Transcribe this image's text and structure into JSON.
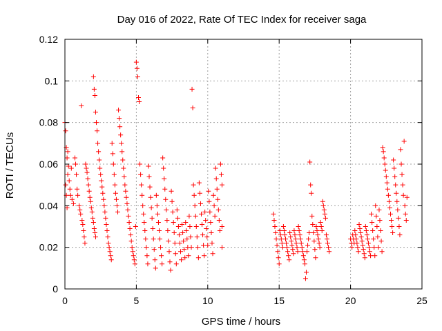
{
  "chart_data": {
    "type": "scatter",
    "title": "Day 016 of 2022, Rate Of TEC Index for receiver saga",
    "xlabel": "GPS time / hours",
    "ylabel": "ROTI / TECUs",
    "xlim": [
      0,
      25
    ],
    "ylim": [
      0,
      0.12
    ],
    "x_ticks": [
      0,
      5,
      10,
      15,
      20,
      25
    ],
    "x_tick_labels": [
      "0",
      "5",
      "10",
      "15",
      "20",
      "25"
    ],
    "y_ticks": [
      0,
      0.02,
      0.04,
      0.06,
      0.08,
      0.1,
      0.12
    ],
    "y_tick_labels": [
      "0",
      "0.02",
      "0.04",
      "0.06",
      "0.08",
      "0.1",
      "0.12"
    ],
    "grid": true,
    "marker": "plus",
    "color": "#ff0000",
    "points": [
      [
        0.0,
        0.08
      ],
      [
        0.05,
        0.076
      ],
      [
        0.1,
        0.068
      ],
      [
        0.15,
        0.063
      ],
      [
        0.2,
        0.066
      ],
      [
        0.25,
        0.059
      ],
      [
        0.05,
        0.05
      ],
      [
        0.1,
        0.045
      ],
      [
        0.15,
        0.039
      ],
      [
        0.2,
        0.055
      ],
      [
        0.3,
        0.052
      ],
      [
        0.35,
        0.048
      ],
      [
        0.4,
        0.045
      ],
      [
        0.45,
        0.058
      ],
      [
        0.5,
        0.043
      ],
      [
        0.6,
        0.041
      ],
      [
        0.7,
        0.063
      ],
      [
        0.75,
        0.06
      ],
      [
        0.8,
        0.055
      ],
      [
        0.85,
        0.048
      ],
      [
        0.9,
        0.045
      ],
      [
        1.0,
        0.04
      ],
      [
        1.05,
        0.038
      ],
      [
        1.1,
        0.036
      ],
      [
        1.15,
        0.088
      ],
      [
        1.2,
        0.033
      ],
      [
        1.25,
        0.031
      ],
      [
        1.3,
        0.028
      ],
      [
        1.35,
        0.025
      ],
      [
        1.4,
        0.022
      ],
      [
        1.45,
        0.06
      ],
      [
        1.5,
        0.058
      ],
      [
        1.55,
        0.056
      ],
      [
        1.6,
        0.053
      ],
      [
        1.65,
        0.05
      ],
      [
        1.7,
        0.047
      ],
      [
        1.75,
        0.044
      ],
      [
        1.8,
        0.042
      ],
      [
        1.85,
        0.039
      ],
      [
        1.9,
        0.037
      ],
      [
        1.95,
        0.034
      ],
      [
        2.0,
        0.032
      ],
      [
        2.05,
        0.029
      ],
      [
        2.1,
        0.027
      ],
      [
        2.15,
        0.025
      ],
      [
        2.0,
        0.102
      ],
      [
        2.05,
        0.096
      ],
      [
        2.1,
        0.093
      ],
      [
        2.15,
        0.085
      ],
      [
        2.2,
        0.08
      ],
      [
        2.25,
        0.076
      ],
      [
        2.3,
        0.07
      ],
      [
        2.35,
        0.066
      ],
      [
        2.4,
        0.062
      ],
      [
        2.45,
        0.058
      ],
      [
        2.5,
        0.055
      ],
      [
        2.55,
        0.052
      ],
      [
        2.6,
        0.049
      ],
      [
        2.65,
        0.046
      ],
      [
        2.7,
        0.043
      ],
      [
        2.75,
        0.04
      ],
      [
        2.8,
        0.037
      ],
      [
        2.85,
        0.034
      ],
      [
        2.9,
        0.031
      ],
      [
        2.95,
        0.028
      ],
      [
        3.0,
        0.025
      ],
      [
        3.05,
        0.022
      ],
      [
        3.1,
        0.02
      ],
      [
        3.15,
        0.018
      ],
      [
        3.2,
        0.016
      ],
      [
        3.25,
        0.014
      ],
      [
        3.3,
        0.07
      ],
      [
        3.35,
        0.065
      ],
      [
        3.4,
        0.06
      ],
      [
        3.45,
        0.055
      ],
      [
        3.5,
        0.05
      ],
      [
        3.55,
        0.046
      ],
      [
        3.6,
        0.043
      ],
      [
        3.65,
        0.04
      ],
      [
        3.7,
        0.037
      ],
      [
        3.75,
        0.086
      ],
      [
        3.8,
        0.082
      ],
      [
        3.85,
        0.078
      ],
      [
        3.9,
        0.074
      ],
      [
        3.95,
        0.07
      ],
      [
        4.0,
        0.066
      ],
      [
        4.05,
        0.062
      ],
      [
        4.1,
        0.058
      ],
      [
        4.15,
        0.054
      ],
      [
        4.2,
        0.05
      ],
      [
        4.25,
        0.047
      ],
      [
        4.3,
        0.044
      ],
      [
        4.35,
        0.041
      ],
      [
        4.4,
        0.038
      ],
      [
        4.45,
        0.035
      ],
      [
        4.5,
        0.032
      ],
      [
        4.55,
        0.029
      ],
      [
        4.6,
        0.026
      ],
      [
        4.65,
        0.023
      ],
      [
        4.7,
        0.02
      ],
      [
        4.75,
        0.018
      ],
      [
        4.8,
        0.016
      ],
      [
        4.85,
        0.014
      ],
      [
        4.9,
        0.012
      ],
      [
        4.95,
        0.03
      ],
      [
        5.0,
        0.109
      ],
      [
        5.05,
        0.106
      ],
      [
        5.1,
        0.102
      ],
      [
        5.15,
        0.092
      ],
      [
        5.2,
        0.09
      ],
      [
        5.25,
        0.06
      ],
      [
        5.3,
        0.055
      ],
      [
        5.35,
        0.05
      ],
      [
        5.4,
        0.045
      ],
      [
        5.45,
        0.04
      ],
      [
        5.5,
        0.036
      ],
      [
        5.55,
        0.032
      ],
      [
        5.6,
        0.028
      ],
      [
        5.65,
        0.024
      ],
      [
        5.7,
        0.02
      ],
      [
        5.75,
        0.016
      ],
      [
        5.8,
        0.012
      ],
      [
        5.85,
        0.059
      ],
      [
        5.9,
        0.054
      ],
      [
        5.95,
        0.049
      ],
      [
        6.0,
        0.044
      ],
      [
        6.05,
        0.039
      ],
      [
        6.1,
        0.034
      ],
      [
        6.15,
        0.029
      ],
      [
        6.2,
        0.024
      ],
      [
        6.25,
        0.019
      ],
      [
        6.3,
        0.014
      ],
      [
        6.35,
        0.01
      ],
      [
        6.4,
        0.045
      ],
      [
        6.45,
        0.04
      ],
      [
        6.5,
        0.036
      ],
      [
        6.55,
        0.032
      ],
      [
        6.6,
        0.028
      ],
      [
        6.65,
        0.024
      ],
      [
        6.7,
        0.02
      ],
      [
        6.75,
        0.016
      ],
      [
        6.8,
        0.012
      ],
      [
        6.85,
        0.063
      ],
      [
        6.9,
        0.058
      ],
      [
        6.95,
        0.053
      ],
      [
        7.0,
        0.048
      ],
      [
        7.05,
        0.043
      ],
      [
        7.1,
        0.038
      ],
      [
        7.15,
        0.033
      ],
      [
        7.2,
        0.028
      ],
      [
        7.25,
        0.023
      ],
      [
        7.3,
        0.018
      ],
      [
        7.35,
        0.013
      ],
      [
        7.4,
        0.009
      ],
      [
        7.45,
        0.047
      ],
      [
        7.5,
        0.042
      ],
      [
        7.55,
        0.037
      ],
      [
        7.6,
        0.032
      ],
      [
        7.65,
        0.027
      ],
      [
        7.7,
        0.022
      ],
      [
        7.75,
        0.017
      ],
      [
        7.8,
        0.012
      ],
      [
        7.85,
        0.038
      ],
      [
        7.9,
        0.034
      ],
      [
        7.95,
        0.03
      ],
      [
        8.0,
        0.026
      ],
      [
        8.05,
        0.022
      ],
      [
        8.1,
        0.018
      ],
      [
        8.15,
        0.014
      ],
      [
        8.2,
        0.031
      ],
      [
        8.25,
        0.027
      ],
      [
        8.3,
        0.023
      ],
      [
        8.35,
        0.019
      ],
      [
        8.4,
        0.015
      ],
      [
        8.45,
        0.032
      ],
      [
        8.5,
        0.028
      ],
      [
        8.55,
        0.024
      ],
      [
        8.6,
        0.02
      ],
      [
        8.65,
        0.016
      ],
      [
        8.7,
        0.035
      ],
      [
        8.75,
        0.03
      ],
      [
        8.8,
        0.025
      ],
      [
        8.85,
        0.02
      ],
      [
        8.9,
        0.096
      ],
      [
        8.95,
        0.087
      ],
      [
        9.0,
        0.05
      ],
      [
        9.05,
        0.045
      ],
      [
        9.1,
        0.04
      ],
      [
        9.15,
        0.035
      ],
      [
        9.2,
        0.03
      ],
      [
        9.25,
        0.025
      ],
      [
        9.3,
        0.02
      ],
      [
        9.35,
        0.015
      ],
      [
        9.4,
        0.051
      ],
      [
        9.45,
        0.046
      ],
      [
        9.5,
        0.041
      ],
      [
        9.55,
        0.036
      ],
      [
        9.6,
        0.031
      ],
      [
        9.65,
        0.026
      ],
      [
        9.7,
        0.021
      ],
      [
        9.75,
        0.016
      ],
      [
        9.8,
        0.037
      ],
      [
        9.85,
        0.033
      ],
      [
        9.9,
        0.029
      ],
      [
        9.95,
        0.025
      ],
      [
        10.0,
        0.021
      ],
      [
        10.05,
        0.047
      ],
      [
        10.1,
        0.042
      ],
      [
        10.15,
        0.037
      ],
      [
        10.2,
        0.032
      ],
      [
        10.25,
        0.027
      ],
      [
        10.3,
        0.022
      ],
      [
        10.35,
        0.017
      ],
      [
        10.4,
        0.045
      ],
      [
        10.45,
        0.04
      ],
      [
        10.5,
        0.035
      ],
      [
        10.55,
        0.058
      ],
      [
        10.6,
        0.053
      ],
      [
        10.65,
        0.048
      ],
      [
        10.7,
        0.043
      ],
      [
        10.75,
        0.038
      ],
      [
        10.8,
        0.033
      ],
      [
        10.85,
        0.028
      ],
      [
        10.9,
        0.06
      ],
      [
        10.95,
        0.055
      ],
      [
        11.0,
        0.05
      ],
      [
        11.0,
        0.03
      ],
      [
        11.0,
        0.02
      ],
      [
        14.6,
        0.036
      ],
      [
        14.65,
        0.033
      ],
      [
        14.7,
        0.03
      ],
      [
        14.75,
        0.027
      ],
      [
        14.8,
        0.024
      ],
      [
        14.85,
        0.021
      ],
      [
        14.9,
        0.018
      ],
      [
        14.95,
        0.015
      ],
      [
        15.0,
        0.012
      ],
      [
        15.05,
        0.028
      ],
      [
        15.1,
        0.026
      ],
      [
        15.15,
        0.024
      ],
      [
        15.2,
        0.022
      ],
      [
        15.25,
        0.02
      ],
      [
        15.3,
        0.03
      ],
      [
        15.35,
        0.028
      ],
      [
        15.4,
        0.026
      ],
      [
        15.45,
        0.024
      ],
      [
        15.5,
        0.022
      ],
      [
        15.55,
        0.02
      ],
      [
        15.6,
        0.018
      ],
      [
        15.65,
        0.016
      ],
      [
        15.7,
        0.014
      ],
      [
        15.75,
        0.027
      ],
      [
        15.8,
        0.025
      ],
      [
        15.85,
        0.023
      ],
      [
        15.9,
        0.021
      ],
      [
        15.95,
        0.019
      ],
      [
        16.0,
        0.017
      ],
      [
        16.05,
        0.028
      ],
      [
        16.1,
        0.026
      ],
      [
        16.15,
        0.024
      ],
      [
        16.2,
        0.022
      ],
      [
        16.25,
        0.02
      ],
      [
        16.3,
        0.018
      ],
      [
        16.35,
        0.03
      ],
      [
        16.4,
        0.028
      ],
      [
        16.45,
        0.026
      ],
      [
        16.5,
        0.024
      ],
      [
        16.55,
        0.022
      ],
      [
        16.6,
        0.02
      ],
      [
        16.65,
        0.018
      ],
      [
        16.7,
        0.016
      ],
      [
        16.75,
        0.014
      ],
      [
        16.8,
        0.012
      ],
      [
        16.85,
        0.005
      ],
      [
        16.9,
        0.008
      ],
      [
        16.95,
        0.018
      ],
      [
        17.0,
        0.021
      ],
      [
        17.05,
        0.024
      ],
      [
        17.1,
        0.027
      ],
      [
        17.15,
        0.061
      ],
      [
        17.2,
        0.05
      ],
      [
        17.25,
        0.046
      ],
      [
        17.3,
        0.035
      ],
      [
        17.35,
        0.031
      ],
      [
        17.4,
        0.027
      ],
      [
        17.45,
        0.023
      ],
      [
        17.5,
        0.019
      ],
      [
        17.55,
        0.015
      ],
      [
        17.6,
        0.03
      ],
      [
        17.65,
        0.028
      ],
      [
        17.7,
        0.026
      ],
      [
        17.75,
        0.024
      ],
      [
        17.8,
        0.022
      ],
      [
        17.85,
        0.02
      ],
      [
        17.9,
        0.032
      ],
      [
        17.95,
        0.03
      ],
      [
        18.0,
        0.028
      ],
      [
        18.05,
        0.042
      ],
      [
        18.1,
        0.04
      ],
      [
        18.15,
        0.038
      ],
      [
        18.2,
        0.036
      ],
      [
        18.25,
        0.034
      ],
      [
        18.3,
        0.026
      ],
      [
        18.35,
        0.024
      ],
      [
        18.4,
        0.022
      ],
      [
        18.45,
        0.02
      ],
      [
        18.5,
        0.018
      ],
      [
        20.0,
        0.024
      ],
      [
        20.05,
        0.022
      ],
      [
        20.1,
        0.02
      ],
      [
        20.15,
        0.026
      ],
      [
        20.2,
        0.024
      ],
      [
        20.25,
        0.022
      ],
      [
        20.3,
        0.028
      ],
      [
        20.35,
        0.026
      ],
      [
        20.4,
        0.024
      ],
      [
        20.45,
        0.022
      ],
      [
        20.5,
        0.02
      ],
      [
        20.55,
        0.018
      ],
      [
        20.6,
        0.031
      ],
      [
        20.65,
        0.029
      ],
      [
        20.7,
        0.027
      ],
      [
        20.75,
        0.025
      ],
      [
        20.8,
        0.023
      ],
      [
        20.85,
        0.021
      ],
      [
        20.9,
        0.019
      ],
      [
        20.95,
        0.017
      ],
      [
        21.0,
        0.015
      ],
      [
        21.05,
        0.03
      ],
      [
        21.1,
        0.028
      ],
      [
        21.15,
        0.026
      ],
      [
        21.2,
        0.024
      ],
      [
        21.25,
        0.022
      ],
      [
        21.3,
        0.02
      ],
      [
        21.35,
        0.018
      ],
      [
        21.4,
        0.016
      ],
      [
        21.45,
        0.036
      ],
      [
        21.5,
        0.032
      ],
      [
        21.55,
        0.028
      ],
      [
        21.6,
        0.024
      ],
      [
        21.65,
        0.02
      ],
      [
        21.7,
        0.016
      ],
      [
        21.75,
        0.04
      ],
      [
        21.8,
        0.035
      ],
      [
        21.85,
        0.03
      ],
      [
        21.9,
        0.025
      ],
      [
        21.95,
        0.02
      ],
      [
        22.0,
        0.038
      ],
      [
        22.05,
        0.033
      ],
      [
        22.1,
        0.028
      ],
      [
        22.15,
        0.023
      ],
      [
        22.2,
        0.018
      ],
      [
        22.25,
        0.068
      ],
      [
        22.3,
        0.066
      ],
      [
        22.35,
        0.063
      ],
      [
        22.4,
        0.06
      ],
      [
        22.45,
        0.057
      ],
      [
        22.5,
        0.054
      ],
      [
        22.55,
        0.051
      ],
      [
        22.6,
        0.048
      ],
      [
        22.65,
        0.045
      ],
      [
        22.7,
        0.042
      ],
      [
        22.75,
        0.039
      ],
      [
        22.8,
        0.036
      ],
      [
        22.85,
        0.033
      ],
      [
        22.9,
        0.03
      ],
      [
        22.95,
        0.027
      ],
      [
        23.0,
        0.062
      ],
      [
        23.05,
        0.058
      ],
      [
        23.1,
        0.054
      ],
      [
        23.15,
        0.05
      ],
      [
        23.2,
        0.046
      ],
      [
        23.25,
        0.042
      ],
      [
        23.3,
        0.038
      ],
      [
        23.35,
        0.034
      ],
      [
        23.4,
        0.03
      ],
      [
        23.45,
        0.026
      ],
      [
        23.5,
        0.067
      ],
      [
        23.55,
        0.06
      ],
      [
        23.6,
        0.055
      ],
      [
        23.65,
        0.05
      ],
      [
        23.7,
        0.045
      ],
      [
        23.75,
        0.071
      ],
      [
        23.8,
        0.04
      ],
      [
        23.85,
        0.036
      ],
      [
        23.9,
        0.033
      ],
      [
        23.95,
        0.044
      ]
    ]
  }
}
